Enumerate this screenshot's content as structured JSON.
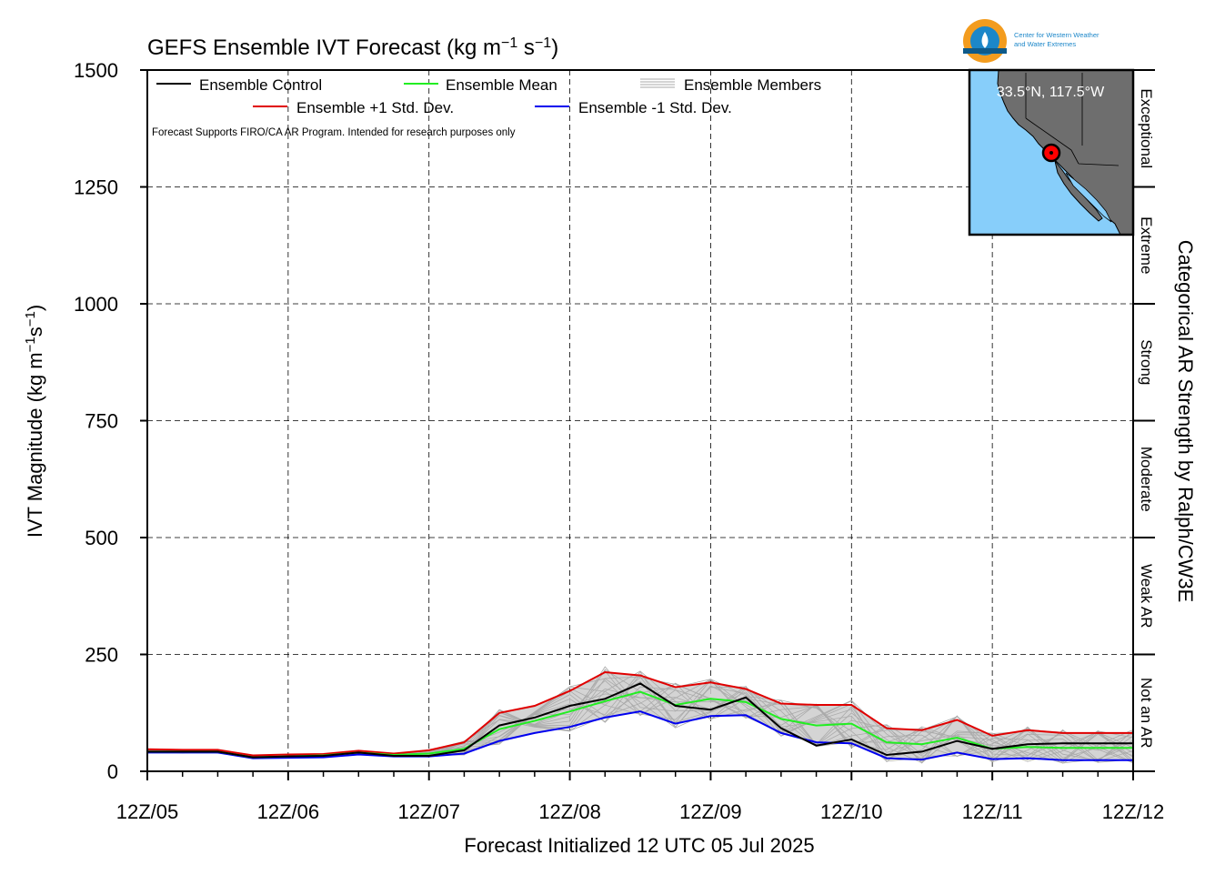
{
  "chart_data": {
    "type": "line",
    "title": "GEFS Ensemble IVT Forecast (kg m",
    "title_exp1": "−1",
    "title_mid": " s",
    "title_exp2": "−1",
    "title_end": ")",
    "ylabel": "IVT Magnitude (kg m",
    "ylabel_exp1": "−1",
    "ylabel_mid": "s",
    "ylabel_exp2": "−1",
    "ylabel_end": ")",
    "xlabel": "Forecast Initialized 12 UTC 05 Jul 2025",
    "right_label": "Categorical AR Strength by Ralph/CW3E",
    "note": "Forecast Supports FIRO/CA AR Program. Intended for research purposes only",
    "ylim": [
      0,
      1500
    ],
    "yticks": [
      0,
      250,
      500,
      750,
      1000,
      1250,
      1500
    ],
    "xlim_hours": [
      0,
      168
    ],
    "xtick_labels": [
      "12Z/05",
      "12Z/06",
      "12Z/07",
      "12Z/08",
      "12Z/09",
      "12Z/10",
      "12Z/11",
      "12Z/12"
    ],
    "grid": true,
    "legend_position": "top-left",
    "legend": {
      "control": "Ensemble Control",
      "mean": "Ensemble Mean",
      "members": "Ensemble Members",
      "plus_std": "Ensemble +1 Std. Dev.",
      "minus_std": "Ensemble -1 Std. Dev."
    },
    "categories_ar": [
      {
        "label": "Not an AR",
        "range": [
          0,
          250
        ]
      },
      {
        "label": "Weak AR",
        "range": [
          250,
          500
        ]
      },
      {
        "label": "Moderate",
        "range": [
          500,
          750
        ]
      },
      {
        "label": "Strong",
        "range": [
          750,
          1000
        ]
      },
      {
        "label": "Extreme",
        "range": [
          1000,
          1250
        ]
      },
      {
        "label": "Exceptional",
        "range": [
          1250,
          1500
        ]
      }
    ],
    "colors": {
      "control": "#000000",
      "mean": "#22ee22",
      "plus_std": "#e00000",
      "minus_std": "#0000ee",
      "members": "#aaaaaa",
      "spread_fill": "#cccccc"
    },
    "series": [
      {
        "name": "Ensemble Control",
        "hours": [
          0,
          6,
          12,
          18,
          24,
          30,
          36,
          42,
          48,
          54,
          60,
          66,
          72,
          78,
          84,
          90,
          96,
          102,
          108,
          114,
          120,
          126,
          132,
          138,
          144,
          150,
          156,
          162,
          168
        ],
        "values": [
          42,
          42,
          42,
          30,
          32,
          33,
          40,
          33,
          33,
          45,
          98,
          115,
          140,
          155,
          188,
          140,
          132,
          158,
          92,
          55,
          68,
          35,
          42,
          65,
          48,
          58,
          60,
          60,
          60
        ]
      },
      {
        "name": "Ensemble Mean",
        "hours": [
          0,
          6,
          12,
          18,
          24,
          30,
          36,
          42,
          48,
          54,
          60,
          66,
          72,
          78,
          84,
          90,
          96,
          102,
          108,
          114,
          120,
          126,
          132,
          138,
          144,
          150,
          156,
          162,
          168
        ],
        "values": [
          42,
          42,
          42,
          30,
          32,
          34,
          40,
          35,
          38,
          48,
          90,
          108,
          128,
          150,
          170,
          142,
          155,
          148,
          112,
          98,
          102,
          62,
          58,
          72,
          48,
          52,
          50,
          50,
          50
        ]
      },
      {
        "name": "Ensemble +1 Std. Dev.",
        "hours": [
          0,
          6,
          12,
          18,
          24,
          30,
          36,
          42,
          48,
          54,
          60,
          66,
          72,
          78,
          84,
          90,
          96,
          102,
          108,
          114,
          120,
          126,
          132,
          138,
          144,
          150,
          156,
          162,
          168
        ],
        "values": [
          47,
          46,
          46,
          34,
          36,
          37,
          44,
          38,
          45,
          62,
          125,
          140,
          172,
          212,
          205,
          180,
          190,
          176,
          145,
          142,
          142,
          92,
          88,
          110,
          76,
          88,
          82,
          82,
          82
        ]
      },
      {
        "name": "Ensemble -1 Std. Dev.",
        "hours": [
          0,
          6,
          12,
          18,
          24,
          30,
          36,
          42,
          48,
          54,
          60,
          66,
          72,
          78,
          84,
          90,
          96,
          102,
          108,
          114,
          120,
          126,
          132,
          138,
          144,
          150,
          156,
          162,
          168
        ],
        "values": [
          40,
          40,
          40,
          28,
          29,
          30,
          36,
          32,
          32,
          38,
          65,
          82,
          95,
          115,
          128,
          102,
          118,
          120,
          82,
          62,
          60,
          28,
          25,
          40,
          26,
          28,
          24,
          24,
          24
        ]
      }
    ],
    "map_inset": {
      "location_label": "33.5°N, 117.5°W",
      "point_lat": 33.5,
      "point_lon": -117.5
    },
    "logo": {
      "text_line1": "Center for Western Weather",
      "text_line2": "and Water Extremes"
    }
  }
}
